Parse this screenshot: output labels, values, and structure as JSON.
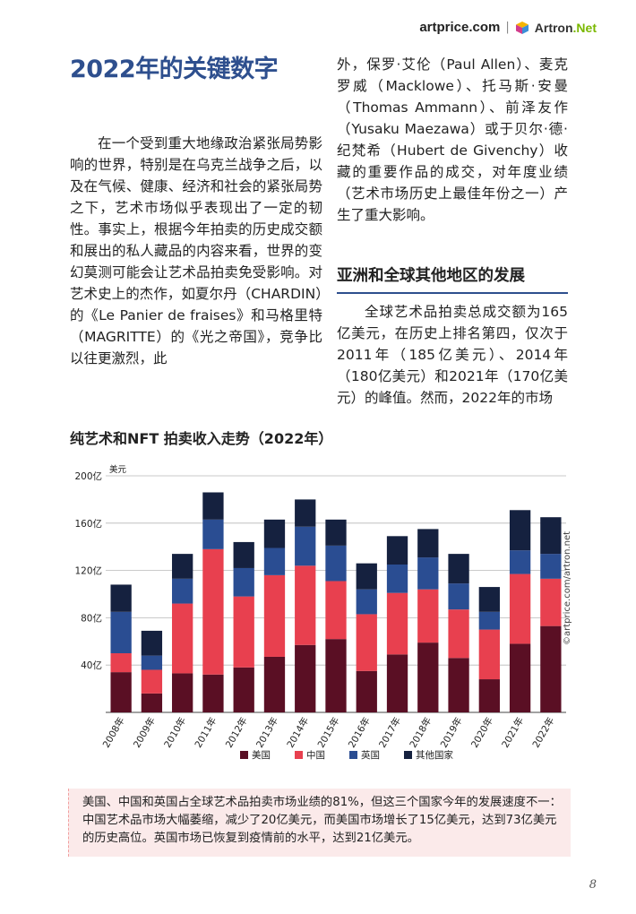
{
  "header": {
    "logo_artprice": "artprice.com",
    "logo_artron": "Artron",
    "logo_artron_suffix": ".Net"
  },
  "left_column": {
    "title": "2022年的关键数字",
    "paragraph": "在一个受到重大地缘政治紧张局势影响的世界，特别是在乌克兰战争之后，以及在气候、健康、经济和社会的紧张局势之下，艺术市场似乎表现出了一定的韧性。事实上，根据今年拍卖的历史成交额和展出的私人藏品的内容来看，世界的变幻莫测可能会让艺术品拍卖免受影响。对艺术史上的杰作，如夏尔丹（CHARDIN）的《Le Panier de fraises》和马格里特（MAGRITTE）的《光之帝国》，竞争比以往更激烈，此"
  },
  "right_column": {
    "paragraph_continued": "外，保罗·艾伦（Paul Allen）、麦克罗威（Macklowe）、托马斯·安曼（Thomas Ammann）、前泽友作（Yusaku Maezawa）或于贝尔·德·纪梵希（Hubert de Givenchy）收藏的重要作品的成交，对年度业绩（艺术市场历史上最佳年份之一）产生了重大影响。",
    "section_title": "亚洲和全球其他地区的发展",
    "section_paragraph": "全球艺术品拍卖总成交额为165亿美元，在历史上排名第四，仅次于2011年（185亿美元）、2014年（180亿美元）和2021年（170亿美元）的峰值。然而，2022年的市场"
  },
  "chart_title": "纯艺术和NFT 拍卖收入走势（2022年）",
  "watermark": "©artprice.com/artron.net",
  "caption": "美国、中国和英国占全球艺术品拍卖市场业绩的81%，但这三个国家今年的发展速度不一：中国艺术品市场大幅萎缩，减少了20亿美元，而美国市场增长了15亿美元，达到73亿美元的历史高位。英国市场已恢复到疫情前的水平，达到21亿美元。",
  "page_number": "8",
  "colors": {
    "usa": "#5a0f24",
    "china": "#e8404f",
    "uk": "#2a4d92",
    "other": "#15213f",
    "title_blue": "#2e4f8e"
  },
  "chart_data": {
    "type": "bar",
    "stacked": true,
    "unit_label": "美元",
    "categories": [
      "2008年",
      "2009年",
      "2010年",
      "2011年",
      "2012年",
      "2013年",
      "2014年",
      "2015年",
      "2016年",
      "2017年",
      "2018年",
      "2019年",
      "2020年",
      "2021年",
      "2022年"
    ],
    "y_ticks": [
      "40亿",
      "80亿",
      "120亿",
      "160亿",
      "200亿"
    ],
    "y_tick_values": [
      40,
      80,
      120,
      160,
      200
    ],
    "ylim": [
      0,
      200
    ],
    "grid": true,
    "legend_position": "bottom",
    "series": [
      {
        "name": "美国",
        "color": "#5a0f24",
        "values": [
          34,
          16,
          33,
          32,
          38,
          47,
          57,
          62,
          35,
          49,
          59,
          46,
          28,
          58,
          73
        ]
      },
      {
        "name": "中国",
        "color": "#e8404f",
        "values": [
          16,
          20,
          59,
          106,
          60,
          69,
          67,
          49,
          48,
          52,
          45,
          41,
          42,
          59,
          40
        ]
      },
      {
        "name": "英国",
        "color": "#2a4d92",
        "values": [
          35,
          12,
          21,
          25,
          24,
          23,
          33,
          30,
          21,
          24,
          27,
          22,
          15,
          20,
          21
        ]
      },
      {
        "name": "其他国家",
        "color": "#15213f",
        "values": [
          23,
          21,
          21,
          23,
          22,
          24,
          23,
          22,
          22,
          24,
          24,
          25,
          21,
          34,
          31
        ]
      }
    ]
  }
}
